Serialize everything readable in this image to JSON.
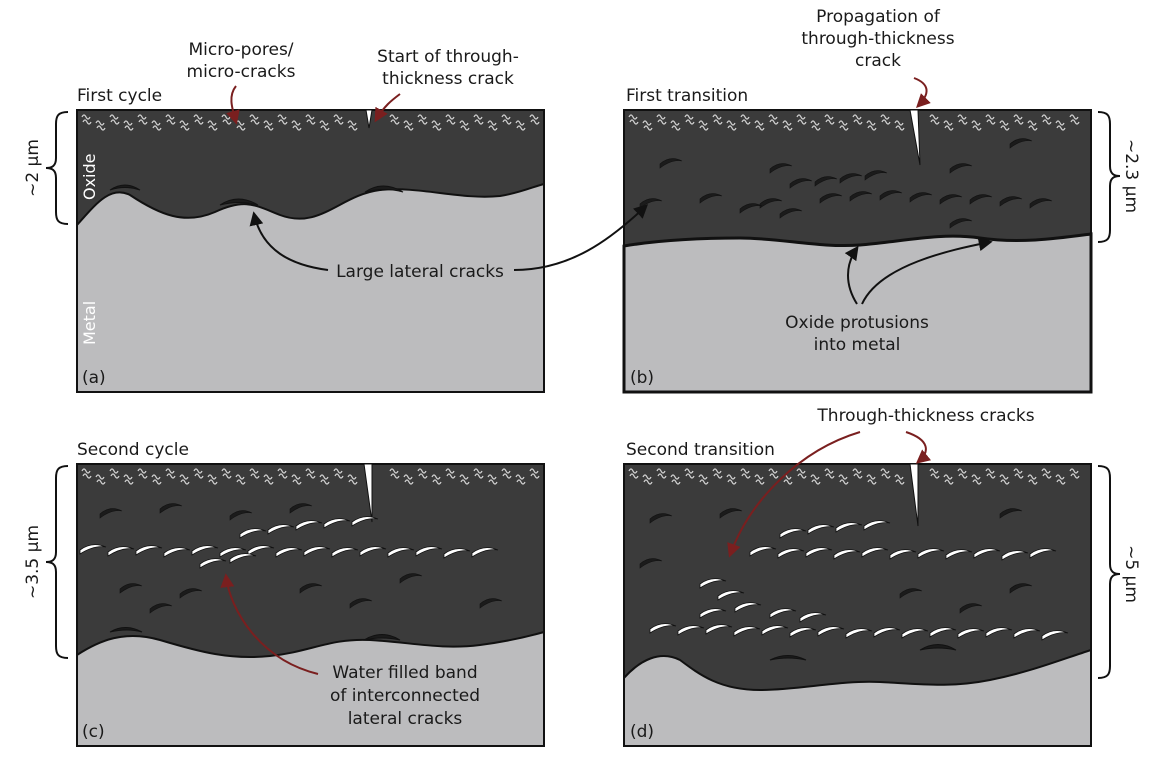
{
  "colors": {
    "oxide": "#3b3b3b",
    "metal": "#bcbcbe",
    "outline": "#111111",
    "crack_red": "#7a1f1f",
    "crack_white": "#ffffff",
    "background": "#ffffff"
  },
  "panels": {
    "a": {
      "id": "(a)",
      "title": "First cycle",
      "thickness": "~2 µm",
      "oxide_label": "Oxide",
      "metal_label": "Metal",
      "callout_pores_line1": "Micro-pores/",
      "callout_pores_line2": "micro-cracks",
      "callout_start_line1": "Start of through-",
      "callout_start_line2": "thickness crack"
    },
    "b": {
      "id": "(b)",
      "title": "First transition",
      "thickness": "~2.3 µm",
      "callout_prop_line1": "Propagation of",
      "callout_prop_line2": "through-thickness",
      "callout_prop_line3": "crack",
      "callout_protusions_line1": "Oxide protusions",
      "callout_protusions_line2": "into metal"
    },
    "shared": {
      "lateral_cracks": "Large lateral cracks"
    },
    "c": {
      "id": "(c)",
      "title": "Second cycle",
      "thickness": "~3.5 µm",
      "callout_water_line1": "Water filled band",
      "callout_water_line2": "of interconnected",
      "callout_water_line3": "lateral cracks"
    },
    "d": {
      "id": "(d)",
      "title": "Second transition",
      "thickness": "~5 µm",
      "callout_through": "Through-thickness cracks"
    }
  }
}
